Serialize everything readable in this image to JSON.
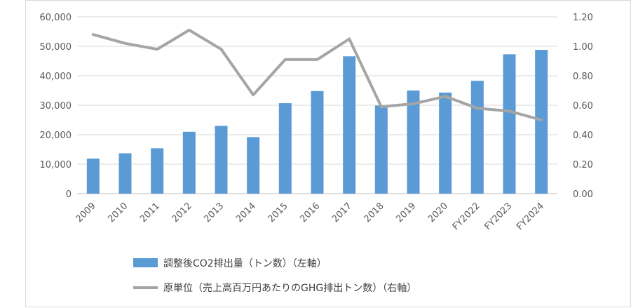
{
  "chart_data": {
    "type": "bar",
    "categories": [
      "2009",
      "2010",
      "2011",
      "2012",
      "2013",
      "2014",
      "2015",
      "2016",
      "2017",
      "2018",
      "2019",
      "2020",
      "FY2022",
      "FY2023",
      "FY2024"
    ],
    "series": [
      {
        "name": "調整後CO2排出量（トン数）（左軸）",
        "type": "bar",
        "axis": "left",
        "color": "#5b9bd5",
        "values": [
          11900,
          13700,
          15400,
          21000,
          23000,
          19200,
          30700,
          34800,
          46600,
          29900,
          35000,
          34300,
          38300,
          47300,
          48800
        ]
      },
      {
        "name": "原単位（売上高百万円あたりのGHG排出トン数）（右軸）",
        "type": "line",
        "axis": "right",
        "color": "#a5a5a5",
        "values": [
          1.08,
          1.02,
          0.98,
          1.11,
          0.98,
          0.67,
          0.91,
          0.91,
          1.05,
          0.59,
          0.61,
          0.66,
          0.58,
          0.56,
          0.5
        ]
      }
    ],
    "y_left": {
      "lim": [
        0,
        60000
      ],
      "ticks": [
        "0",
        "10,000",
        "20,000",
        "30,000",
        "40,000",
        "50,000",
        "60,000"
      ]
    },
    "y_right": {
      "lim": [
        0,
        1.2
      ],
      "ticks": [
        "0.00",
        "0.20",
        "0.40",
        "0.60",
        "0.80",
        "1.00",
        "1.20"
      ]
    },
    "grid": true,
    "legend": "bottom"
  }
}
